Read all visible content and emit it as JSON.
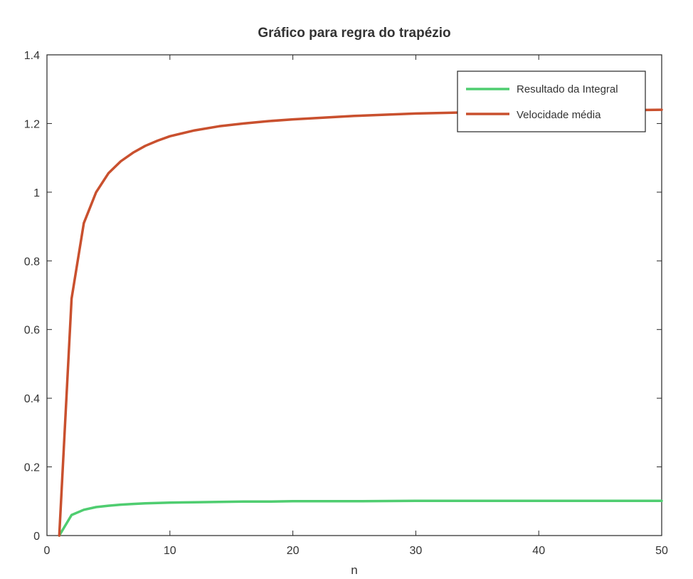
{
  "chart_data": {
    "type": "line",
    "title": "Gráfico para regra do trapézio",
    "xlabel": "n",
    "ylabel": "",
    "xlim": [
      0,
      50
    ],
    "ylim": [
      0,
      1.4
    ],
    "xticks": [
      "0",
      "10",
      "20",
      "30",
      "40",
      "50"
    ],
    "yticks": [
      "0",
      "0.2",
      "0.4",
      "0.6",
      "0.8",
      "1",
      "1.2",
      "1.4"
    ],
    "grid": false,
    "legend_position": "top-right",
    "series": [
      {
        "name": "Resultado da Integral",
        "color": "#4fcd70",
        "x": [
          1,
          2,
          3,
          4,
          5,
          6,
          7,
          8,
          9,
          10,
          12,
          14,
          16,
          18,
          20,
          25,
          30,
          35,
          40,
          45,
          50
        ],
        "y": [
          0,
          0.06,
          0.075,
          0.083,
          0.087,
          0.09,
          0.092,
          0.094,
          0.095,
          0.096,
          0.097,
          0.098,
          0.099,
          0.099,
          0.1,
          0.1,
          0.101,
          0.101,
          0.101,
          0.101,
          0.101
        ]
      },
      {
        "name": "Velocidade média",
        "color": "#c9502e",
        "x": [
          1,
          2,
          3,
          4,
          5,
          6,
          7,
          8,
          9,
          10,
          12,
          14,
          16,
          18,
          20,
          25,
          30,
          35,
          40,
          45,
          50
        ],
        "y": [
          0,
          0.69,
          0.91,
          1.0,
          1.055,
          1.09,
          1.115,
          1.135,
          1.15,
          1.163,
          1.18,
          1.192,
          1.2,
          1.207,
          1.212,
          1.222,
          1.229,
          1.233,
          1.236,
          1.238,
          1.24
        ]
      }
    ]
  }
}
